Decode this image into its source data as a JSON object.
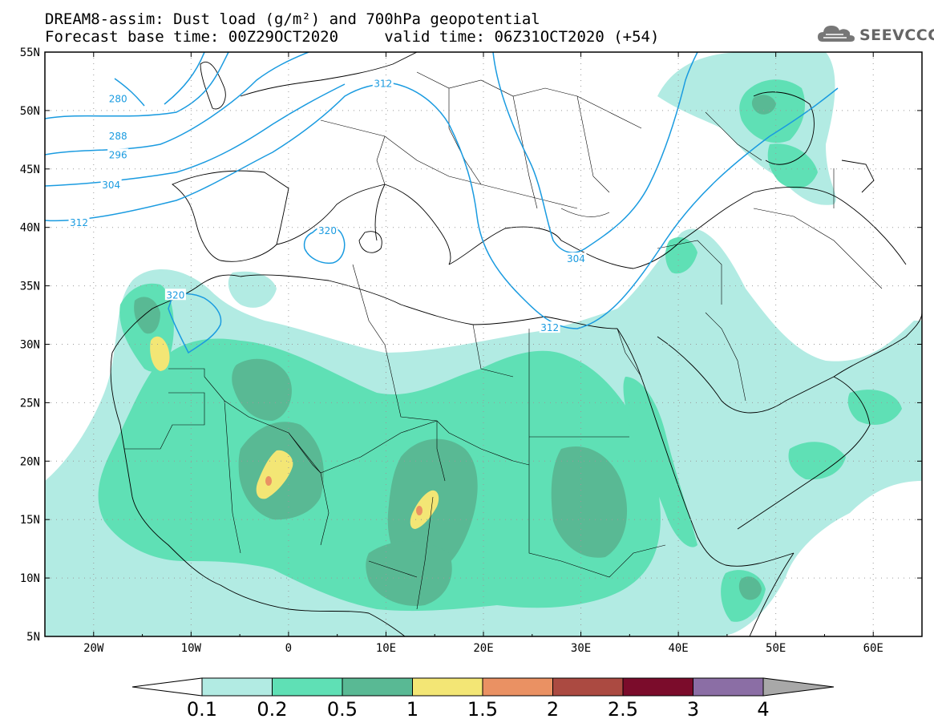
{
  "title_line1": "DREAM8-assim: Dust load (g/m²) and 700hPa geopotential",
  "title_line2": "Forecast base time: 00Z29OCT2020     valid time: 06Z31OCT2020 (+54)",
  "logo_text": "SEEVCCC",
  "map": {
    "lon_range": [
      -25,
      65
    ],
    "lat_range": [
      5,
      55
    ],
    "lon_ticks": [
      -20,
      -10,
      0,
      10,
      20,
      30,
      40,
      50,
      60
    ],
    "lon_labels": [
      "20W",
      "10W",
      "0",
      "10E",
      "20E",
      "30E",
      "40E",
      "50E",
      "60E"
    ],
    "lat_ticks": [
      55,
      50,
      45,
      40,
      35,
      30,
      25,
      20,
      15,
      10,
      5
    ],
    "lat_labels": [
      "55N",
      "50N",
      "45N",
      "40N",
      "35N",
      "30N",
      "25N",
      "20N",
      "15N",
      "10N",
      "5N"
    ]
  },
  "contour_labels": [
    {
      "text": "280",
      "lon": -17.5,
      "lat": 51
    },
    {
      "text": "288",
      "lon": -17.5,
      "lat": 47.8
    },
    {
      "text": "296",
      "lon": -17.5,
      "lat": 46.2
    },
    {
      "text": "304",
      "lon": -18.2,
      "lat": 43.6
    },
    {
      "text": "312",
      "lon": -21.5,
      "lat": 40.4
    },
    {
      "text": "312",
      "lon": 9.7,
      "lat": 52.3
    },
    {
      "text": "320",
      "lon": 4,
      "lat": 39.7
    },
    {
      "text": "320",
      "lon": -11.6,
      "lat": 34.2
    },
    {
      "text": "304",
      "lon": 29.5,
      "lat": 37.3
    },
    {
      "text": "312",
      "lon": 26.8,
      "lat": 31.4
    }
  ],
  "colorbar": {
    "labels": [
      "0.1",
      "0.2",
      "0.5",
      "1",
      "1.5",
      "2",
      "2.5",
      "3",
      "4"
    ],
    "colors": [
      "#b2ebe3",
      "#5fe0b5",
      "#59b994",
      "#f3e675",
      "#ea9163",
      "#ab4a41",
      "#7b0c2b",
      "#8b6ea5"
    ],
    "under_color": "#ffffff",
    "over_color": "#a8a8a8"
  }
}
